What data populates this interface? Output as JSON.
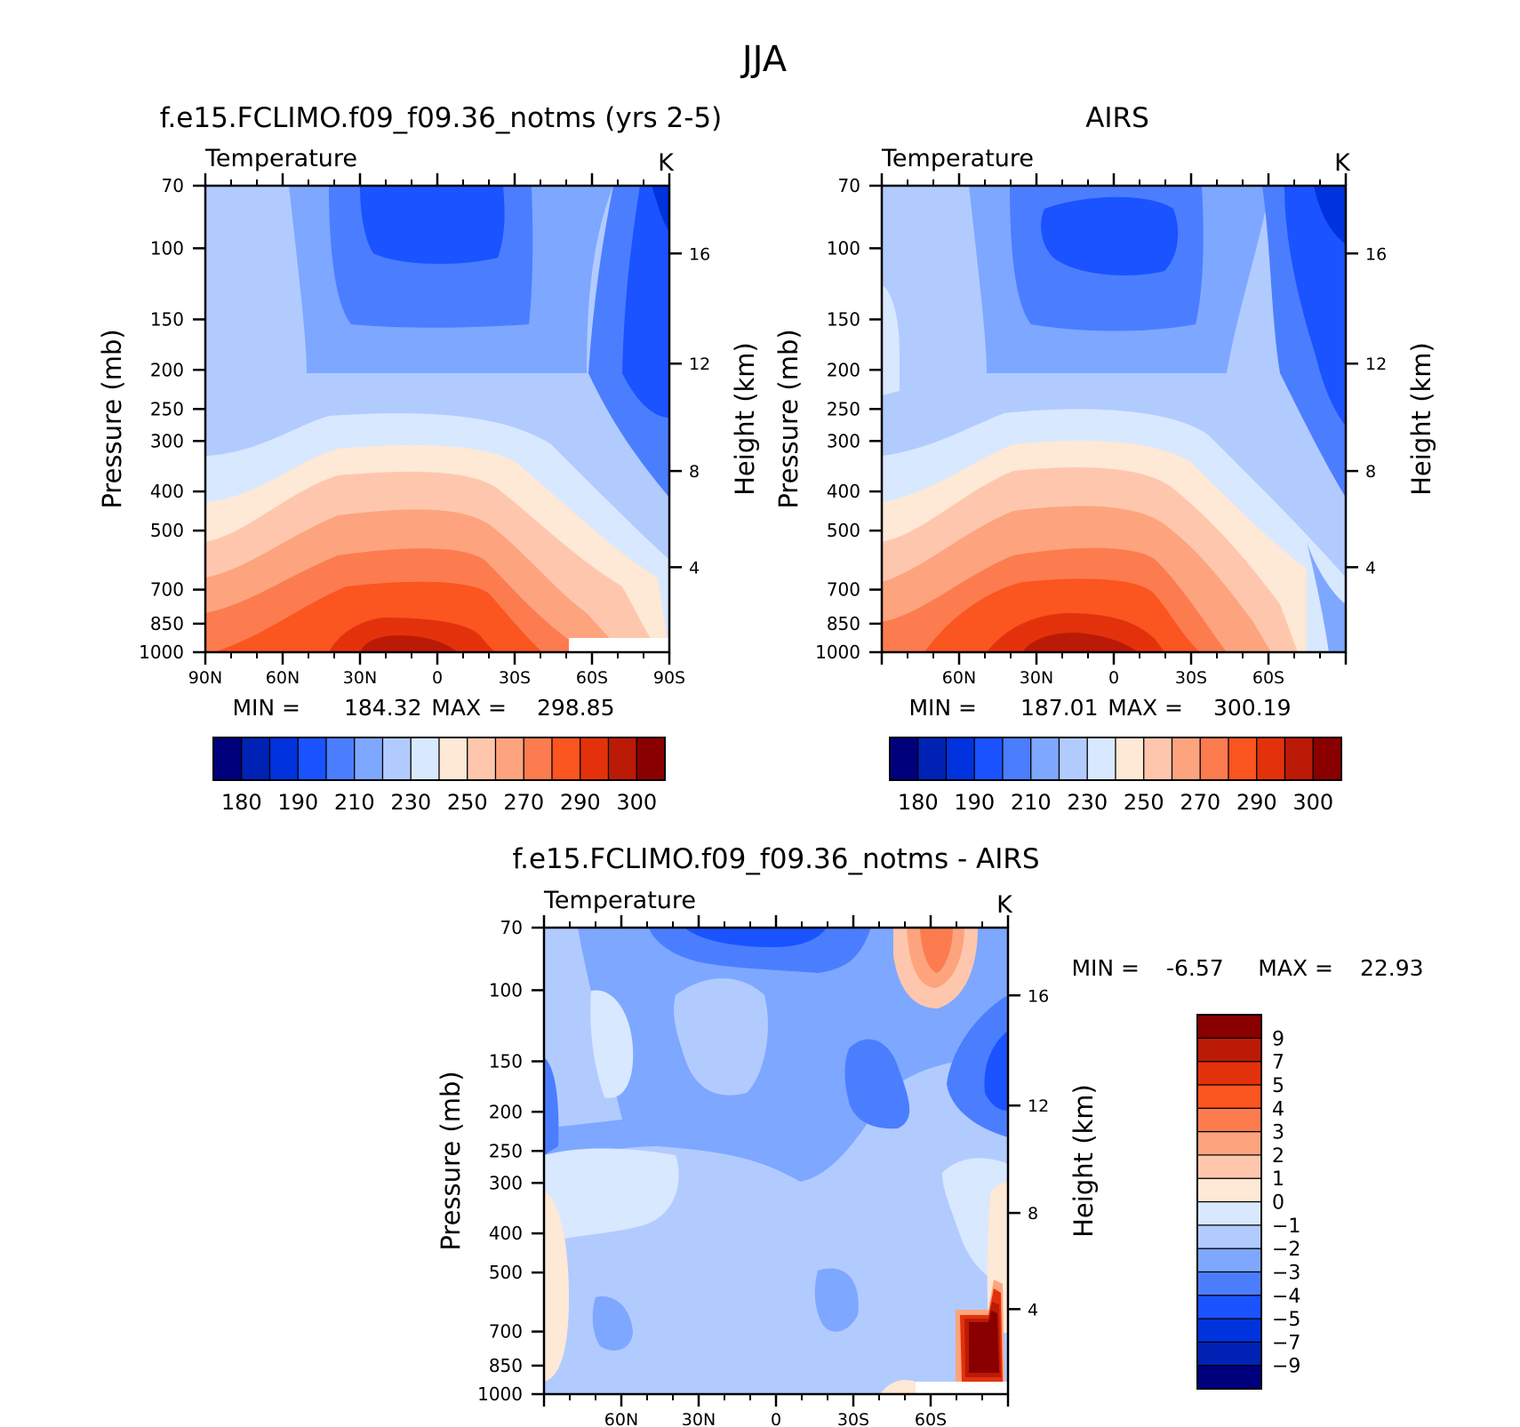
{
  "page_title": "JJA",
  "colors": {
    "abs_palette": [
      "#00007c",
      "#0022b4",
      "#0033dd",
      "#1a53ff",
      "#4b7eff",
      "#7ea7ff",
      "#b2cbff",
      "#d8e8ff",
      "#fee8d6",
      "#fec7ad",
      "#fda47e",
      "#fc7c50",
      "#fb5520",
      "#e3320b",
      "#bb1a06",
      "#8a0000"
    ],
    "diff_palette": [
      "#00007c",
      "#0022b4",
      "#0033dd",
      "#1a53ff",
      "#4b7eff",
      "#7ea7ff",
      "#b2cbff",
      "#d8e8ff",
      "#fee8d6",
      "#fec7ad",
      "#fda47e",
      "#fc7c50",
      "#fb5520",
      "#e3320b",
      "#bb1a06",
      "#8a0000"
    ]
  },
  "chart_data": [
    {
      "type": "heatmap",
      "title": "f.e15.FCLIMO.f09_f09.36_notms (yrs 2-5)",
      "variable": "Temperature",
      "units": "K",
      "ylabel": "Pressure (mb)",
      "ylabel_right": "Height (km)",
      "x_ticks": [
        "90N",
        "60N",
        "30N",
        "0",
        "30S",
        "60S",
        "90S"
      ],
      "y_ticks": [
        70,
        100,
        150,
        200,
        250,
        300,
        400,
        500,
        700,
        850,
        1000
      ],
      "y_right_ticks": [
        16,
        12,
        8,
        4
      ],
      "min_label": "MIN =",
      "min_value": "184.32",
      "max_label": "MAX =",
      "max_value": "298.85",
      "colorbar_labels": [
        "180",
        "190",
        "210",
        "230",
        "250",
        "270",
        "290",
        "300"
      ],
      "colorbar_orientation": "horizontal",
      "scale": "log-pressure"
    },
    {
      "type": "heatmap",
      "title": "AIRS",
      "variable": "Temperature",
      "units": "K",
      "ylabel": "Pressure (mb)",
      "ylabel_right": "Height (km)",
      "x_ticks": [
        "60N",
        "30N",
        "0",
        "30S",
        "60S"
      ],
      "y_ticks": [
        70,
        100,
        150,
        200,
        250,
        300,
        400,
        500,
        700,
        850,
        1000
      ],
      "y_right_ticks": [
        16,
        12,
        8,
        4
      ],
      "min_label": "MIN =",
      "min_value": "187.01",
      "max_label": "MAX =",
      "max_value": "300.19",
      "colorbar_labels": [
        "180",
        "190",
        "210",
        "230",
        "250",
        "270",
        "290",
        "300"
      ],
      "colorbar_orientation": "horizontal",
      "scale": "log-pressure"
    },
    {
      "type": "heatmap",
      "title": "f.e15.FCLIMO.f09_f09.36_notms - AIRS",
      "variable": "Temperature",
      "units": "K",
      "ylabel": "Pressure (mb)",
      "ylabel_right": "Height (km)",
      "x_ticks": [
        "60N",
        "30N",
        "0",
        "30S",
        "60S"
      ],
      "y_ticks": [
        70,
        100,
        150,
        200,
        250,
        300,
        400,
        500,
        700,
        850,
        1000
      ],
      "y_right_ticks": [
        16,
        12,
        8,
        4
      ],
      "min_label": "MIN =",
      "min_value": "-6.57",
      "max_label": "MAX =",
      "max_value": "22.93",
      "colorbar_labels": [
        "9",
        "7",
        "5",
        "4",
        "3",
        "2",
        "1",
        "0",
        "-1",
        "-2",
        "-3",
        "-4",
        "-5",
        "-7",
        "-9"
      ],
      "colorbar_orientation": "vertical",
      "scale": "log-pressure"
    }
  ]
}
